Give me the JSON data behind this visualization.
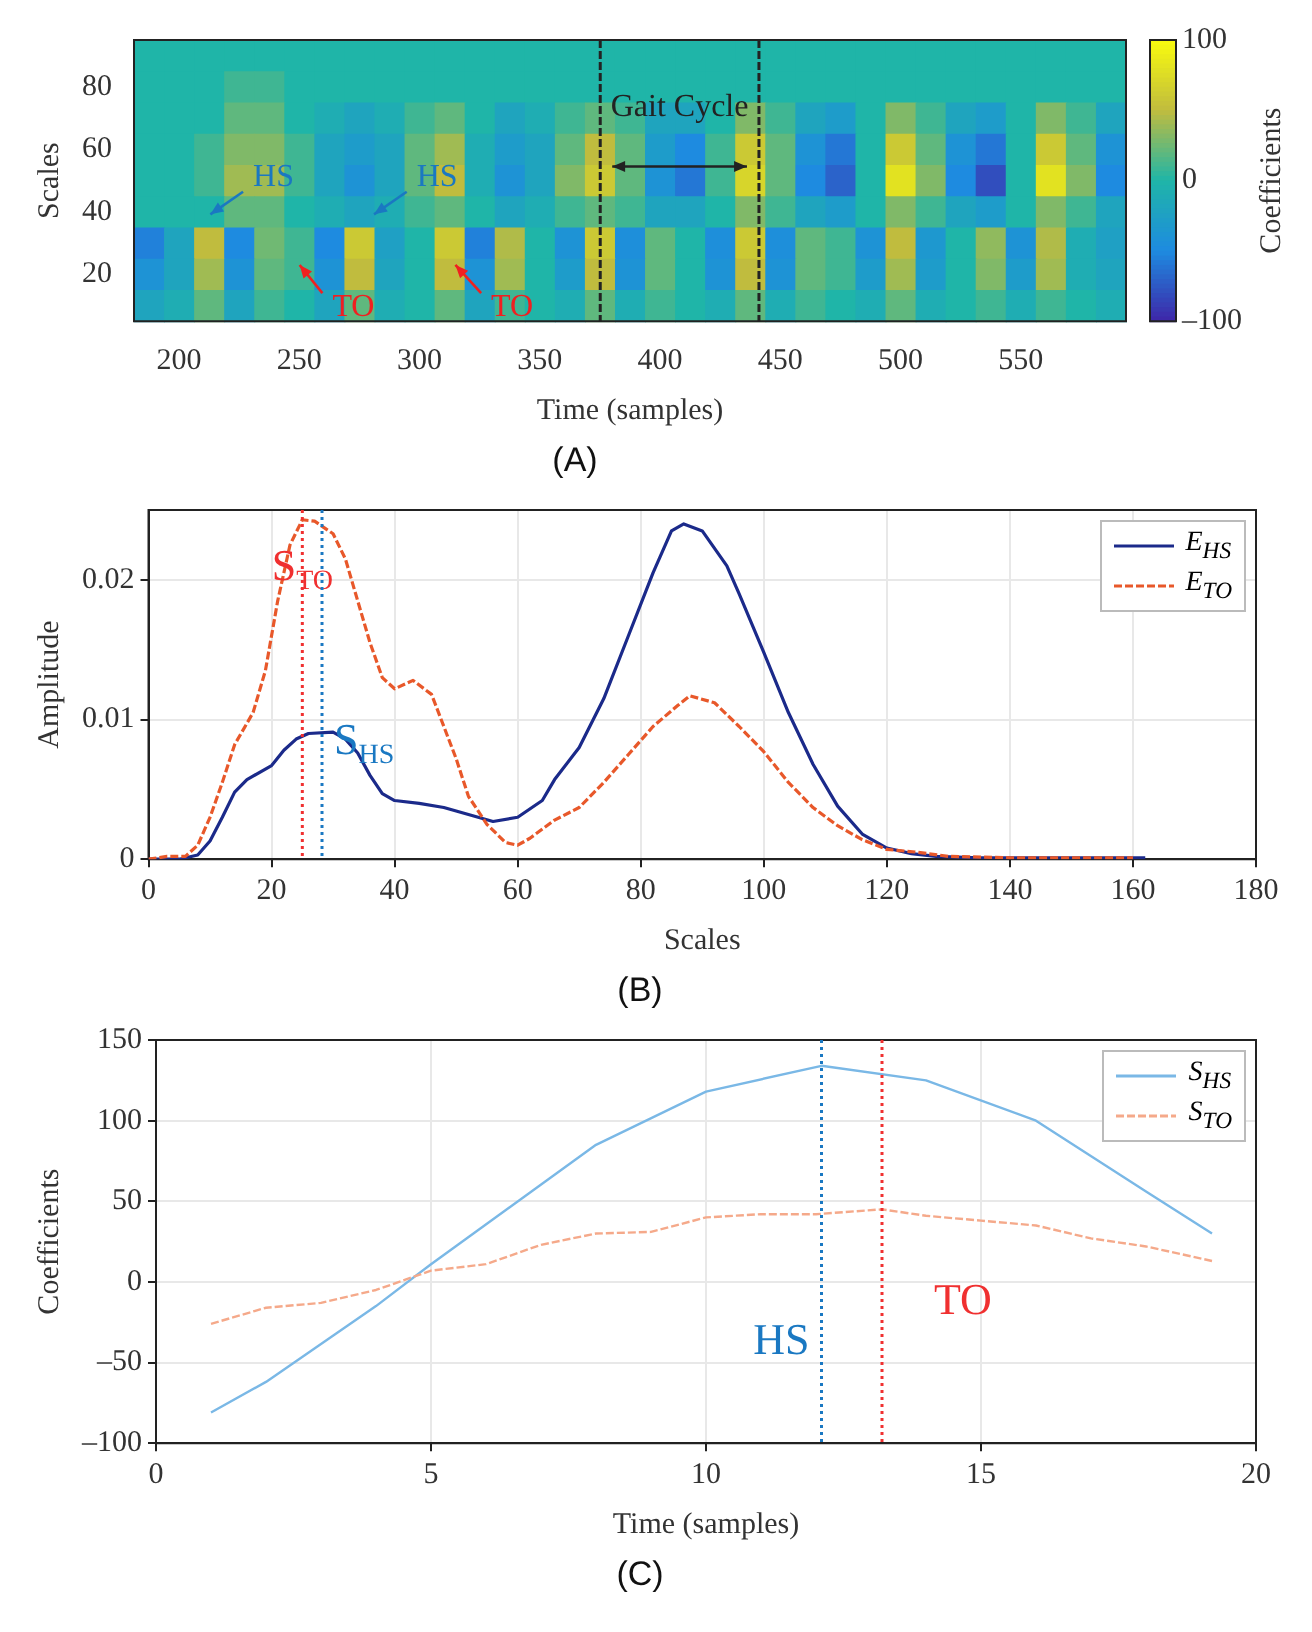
{
  "chart_data": [
    {
      "type": "heatmap",
      "title": "(A)",
      "xlabel": "Time (samples)",
      "ylabel": "Scales",
      "clabel": "Coefficients",
      "categories": [
        null,
        "200",
        null,
        null,
        null,
        "250",
        null,
        null,
        null,
        "300",
        null,
        null,
        null,
        "350",
        null,
        null,
        null,
        "400",
        null,
        null,
        null,
        "450",
        null,
        null,
        null,
        "500",
        null,
        null,
        null,
        "550",
        null,
        null,
        null
      ],
      "y_categories": [
        null,
        "80",
        null,
        "60",
        null,
        "40",
        null,
        "20",
        null
      ],
      "cells": [
        [
          0,
          0,
          0,
          0,
          0,
          0,
          0,
          0,
          0,
          0,
          0,
          0,
          0,
          0,
          0,
          0,
          0,
          0,
          0,
          0,
          0,
          0,
          0,
          0,
          0,
          0,
          0,
          0,
          0,
          0,
          0,
          0,
          0
        ],
        [
          0,
          0,
          0,
          10,
          10,
          0,
          0,
          0,
          0,
          0,
          0,
          0,
          0,
          0,
          0,
          0,
          0,
          0,
          0,
          0,
          0,
          0,
          0,
          0,
          0,
          0,
          0,
          0,
          0,
          0,
          0,
          0,
          0
        ],
        [
          0,
          0,
          0,
          20,
          20,
          0,
          -10,
          -20,
          -10,
          10,
          20,
          0,
          -20,
          -10,
          10,
          20,
          10,
          -20,
          -20,
          0,
          30,
          10,
          -20,
          -30,
          0,
          30,
          10,
          -20,
          -30,
          0,
          30,
          10,
          -20
        ],
        [
          0,
          0,
          10,
          30,
          30,
          10,
          -20,
          -30,
          -20,
          20,
          40,
          -10,
          -30,
          -20,
          20,
          50,
          20,
          -30,
          -50,
          10,
          60,
          20,
          -40,
          -60,
          0,
          60,
          20,
          -40,
          -60,
          0,
          60,
          20,
          -40
        ],
        [
          0,
          0,
          10,
          40,
          40,
          10,
          -20,
          -40,
          -20,
          20,
          50,
          -10,
          -40,
          -20,
          30,
          60,
          20,
          -40,
          -60,
          10,
          70,
          20,
          -50,
          -70,
          0,
          80,
          30,
          -50,
          -80,
          0,
          80,
          30,
          -50
        ],
        [
          0,
          0,
          0,
          20,
          20,
          0,
          -10,
          -20,
          -10,
          10,
          20,
          0,
          -20,
          -10,
          10,
          20,
          10,
          -20,
          -20,
          0,
          30,
          10,
          -20,
          -30,
          0,
          30,
          10,
          -20,
          -30,
          0,
          30,
          10,
          -20
        ],
        [
          -55,
          -20,
          50,
          -50,
          25,
          10,
          -50,
          60,
          -25,
          0,
          60,
          -55,
          45,
          0,
          -40,
          60,
          -45,
          20,
          0,
          -45,
          60,
          -45,
          20,
          10,
          -40,
          50,
          -35,
          0,
          35,
          -40,
          45,
          -10,
          -25
        ],
        [
          -40,
          -20,
          40,
          -40,
          20,
          10,
          -40,
          50,
          -20,
          0,
          50,
          -40,
          40,
          0,
          -30,
          50,
          -40,
          20,
          0,
          -40,
          50,
          -40,
          20,
          10,
          -30,
          40,
          -30,
          0,
          30,
          -30,
          40,
          -10,
          -20
        ],
        [
          -20,
          -10,
          20,
          -20,
          10,
          0,
          -20,
          20,
          -10,
          0,
          20,
          -20,
          10,
          0,
          -10,
          20,
          -10,
          10,
          0,
          -10,
          20,
          -10,
          10,
          0,
          -10,
          20,
          -10,
          0,
          10,
          -10,
          10,
          0,
          -10
        ]
      ],
      "clim": [
        -100,
        100
      ],
      "cticks": [
        {
          "value": -100,
          "label": "–100"
        },
        0,
        100
      ],
      "annotations": [
        "Gait Cycle",
        "HS",
        "HS",
        "TO",
        "TO"
      ]
    },
    {
      "type": "line",
      "title": "(B)",
      "xlabel": "Scales",
      "ylabel": "Amplitude",
      "grid": true,
      "legend": "top right",
      "xlim": [
        0,
        180
      ],
      "xticks": [
        0,
        20,
        40,
        60,
        80,
        100,
        120,
        140,
        160,
        180
      ],
      "ylim": [
        0,
        0.025
      ],
      "yticks": [
        0,
        0.01,
        0.02
      ],
      "series": [
        {
          "name": "E$_{HS}$",
          "color": "#1b2a8a",
          "line_style": "solid",
          "x": [
            0,
            5,
            8,
            10,
            12,
            14,
            16,
            20,
            22,
            24,
            26,
            30,
            32,
            34,
            36,
            38,
            40,
            44,
            48,
            52,
            56,
            60,
            64,
            66,
            70,
            74,
            78,
            82,
            85,
            87,
            90,
            94,
            96,
            100,
            104,
            108,
            112,
            116,
            120,
            124,
            128,
            135,
            145,
            162
          ],
          "values": [
            0,
            0,
            0.0003,
            0.0013,
            0.003,
            0.0048,
            0.0057,
            0.0067,
            0.0078,
            0.0086,
            0.009,
            0.0091,
            0.0086,
            0.0076,
            0.006,
            0.0047,
            0.0042,
            0.004,
            0.0037,
            0.0032,
            0.0027,
            0.003,
            0.0042,
            0.0057,
            0.008,
            0.0115,
            0.016,
            0.0205,
            0.0235,
            0.024,
            0.0235,
            0.021,
            0.019,
            0.0148,
            0.0105,
            0.0068,
            0.0038,
            0.0018,
            0.0008,
            0.0004,
            0.0002,
            0.0001,
            0.0001,
            0.0001
          ]
        },
        {
          "name": "E$_{TO}$",
          "color": "#e8582a",
          "line_style": "dashed",
          "x": [
            0,
            3,
            6,
            8,
            10,
            12,
            14,
            17,
            19,
            21,
            23,
            25,
            27,
            30,
            32,
            34,
            36,
            38,
            40,
            43,
            46,
            48,
            50,
            52,
            55,
            58,
            60,
            62,
            66,
            70,
            74,
            78,
            82,
            86,
            88,
            92,
            96,
            100,
            104,
            108,
            112,
            116,
            120,
            125,
            130,
            140,
            160
          ],
          "values": [
            0,
            0.0002,
            0.0002,
            0.001,
            0.003,
            0.0055,
            0.0082,
            0.0105,
            0.0135,
            0.0185,
            0.0225,
            0.0243,
            0.0242,
            0.0233,
            0.0215,
            0.0185,
            0.0155,
            0.013,
            0.0122,
            0.0128,
            0.0118,
            0.0095,
            0.0072,
            0.0045,
            0.0025,
            0.0012,
            0.001,
            0.0015,
            0.0028,
            0.0037,
            0.0055,
            0.0075,
            0.0095,
            0.011,
            0.0117,
            0.0112,
            0.0095,
            0.0077,
            0.0055,
            0.0037,
            0.0024,
            0.0014,
            0.0007,
            0.0005,
            0.0002,
            0.0001,
            0.0001
          ]
        }
      ],
      "ref_lines": [
        {
          "axis": "x",
          "value": 25,
          "label": "S$_{TO}$",
          "color": "#f03030",
          "line_style": "dotted"
        },
        {
          "axis": "x",
          "value": 28.2,
          "label": "S$_{HS}$",
          "color": "#1a78c2",
          "line_style": "dotted"
        }
      ]
    },
    {
      "type": "line",
      "title": "(C)",
      "xlabel": "Time (samples)",
      "ylabel": "Coefficients",
      "grid": true,
      "legend": "top right",
      "xlim": [
        0,
        20
      ],
      "xticks": [
        0,
        5,
        10,
        15,
        20
      ],
      "ylim": [
        -100,
        150
      ],
      "yticks": [
        {
          "value": -100,
          "label": "–100"
        },
        {
          "value": -50,
          "label": "–50"
        },
        0,
        50,
        100,
        150
      ],
      "series": [
        {
          "name": "S$_{HS}$",
          "color": "#7ab8e6",
          "line_style": "solid",
          "x": [
            1,
            2,
            4,
            5,
            8,
            10,
            12.1,
            14,
            16,
            18,
            19.2
          ],
          "values": [
            -81,
            -62,
            -15,
            11,
            85,
            118,
            134,
            125,
            100,
            56,
            30
          ]
        },
        {
          "name": "S$_{TO}$",
          "color": "#f5a98a",
          "line_style": "dashed",
          "x": [
            1,
            2,
            3,
            4,
            5,
            6,
            7,
            8,
            9,
            10,
            11,
            12,
            13.2,
            14,
            15,
            16,
            17,
            18,
            19.2
          ],
          "values": [
            -26,
            -16,
            -13,
            -5,
            7,
            11,
            23,
            30,
            31,
            40,
            42,
            42,
            45,
            41,
            38,
            35,
            27,
            22,
            13
          ]
        }
      ],
      "ref_lines": [
        {
          "axis": "x",
          "value": 12.1,
          "label": "HS",
          "color": "#1a78c2",
          "line_style": "dotted"
        },
        {
          "axis": "x",
          "value": 13.2,
          "label": "TO",
          "color": "#f03030",
          "line_style": "dotted"
        }
      ]
    }
  ]
}
